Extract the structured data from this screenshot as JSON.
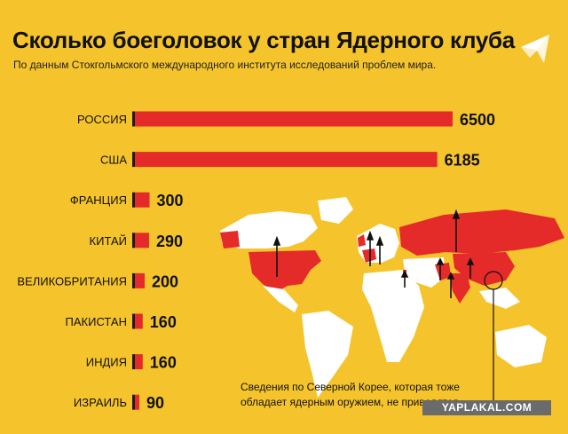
{
  "header": {
    "title": "Сколько боеголовок у стран Ядерного клуба",
    "subtitle": "По данным Стокгольмского международного института исследований проблем мира."
  },
  "colors": {
    "background": "#f5c42c",
    "bar": "#e52a2a",
    "bar_tick": "#1a1a1a",
    "map_land": "#ffffff",
    "map_nuclear": "#e52a2a"
  },
  "chart_data": {
    "type": "bar",
    "orientation": "horizontal",
    "title": "Сколько боеголовок у стран Ядерного клуба",
    "subtitle": "По данным Стокгольмского международного института исследований проблем мира.",
    "categories": [
      "РОССИЯ",
      "США",
      "ФРАНЦИЯ",
      "КИТАЙ",
      "ВЕЛИКОБРИТАНИЯ",
      "ПАКИСТАН",
      "ИНДИЯ",
      "ИЗРАИЛЬ"
    ],
    "values": [
      6500,
      6185,
      300,
      290,
      200,
      160,
      160,
      90
    ],
    "value_labels": [
      "6500",
      "6185",
      "300",
      "290",
      "200",
      "160",
      "160",
      "90"
    ],
    "xlabel": "",
    "ylabel": "",
    "xlim": [
      0,
      6500
    ],
    "grid": false
  },
  "footnote": {
    "line1": "Сведения по Северной Корее, которая тоже",
    "line2": "обладает ядерным оружием, не приводятся"
  },
  "watermark": "YAPLAKAL.COM",
  "icons": {
    "logo": "bird-logo-icon",
    "map": "world-map-icon"
  }
}
